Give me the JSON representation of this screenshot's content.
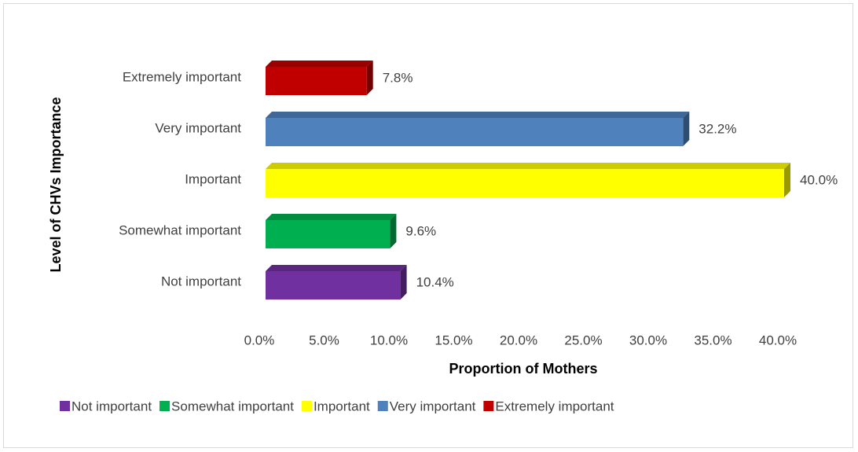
{
  "chart_data": {
    "type": "bar",
    "orientation": "horizontal",
    "x_label": "Proportion of Mothers",
    "y_label": "Level of CHVs Importance",
    "categories": [
      "Not important",
      "Somewhat important",
      "Important",
      "Very important",
      "Extremely important"
    ],
    "values": [
      10.4,
      9.6,
      40.0,
      32.2,
      7.8
    ],
    "value_labels": [
      "10.4%",
      "9.6%",
      "40.0%",
      "32.2%",
      "7.8%"
    ],
    "colors": [
      "#7030a0",
      "#00b050",
      "#ffff00",
      "#4f81bd",
      "#c00000"
    ],
    "xlim": [
      0,
      40
    ],
    "xticks": [
      {
        "value": 0,
        "label": "0.0%"
      },
      {
        "value": 5,
        "label": "5.0%"
      },
      {
        "value": 10,
        "label": "10.0%"
      },
      {
        "value": 15,
        "label": "15.0%"
      },
      {
        "value": 20,
        "label": "20.0%"
      },
      {
        "value": 25,
        "label": "25.0%"
      },
      {
        "value": 30,
        "label": "30.0%"
      },
      {
        "value": 35,
        "label": "35.0%"
      },
      {
        "value": 40,
        "label": "40.0%"
      }
    ],
    "legend": "bottom",
    "grid": false
  }
}
